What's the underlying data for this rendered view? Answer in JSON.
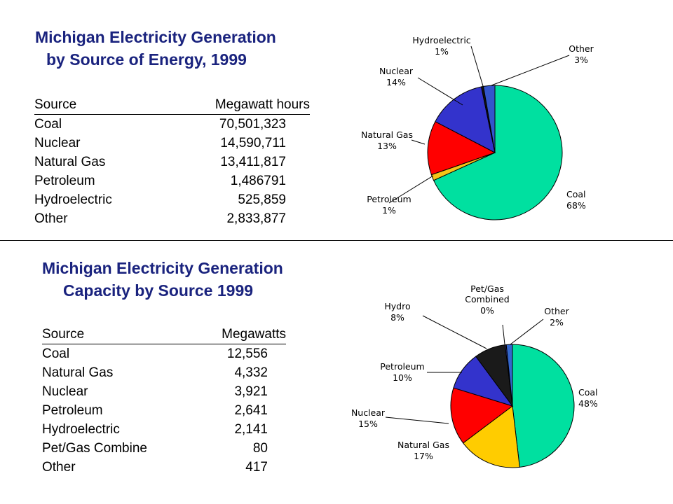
{
  "generation": {
    "title_line1": "Michigan Electricity Generation",
    "title_line2": "by Source of Energy, 1999",
    "col_source": "Source",
    "col_value": "Megawatt hours",
    "rows": [
      {
        "source": "Coal",
        "value": "70,501,323"
      },
      {
        "source": "Nuclear",
        "value": "14,590,711"
      },
      {
        "source": "Natural Gas",
        "value": "13,411,817"
      },
      {
        "source": "Petroleum",
        "value": "1,486791"
      },
      {
        "source": "Hydroelectric",
        "value": "525,859"
      },
      {
        "source": "Other",
        "value": "2,833,877"
      }
    ]
  },
  "capacity": {
    "title_line1": "Michigan Electricity Generation",
    "title_line2": "Capacity by Source 1999",
    "col_source": "Source",
    "col_value": "Megawatts",
    "rows": [
      {
        "source": "Coal",
        "value": "12,556"
      },
      {
        "source": "Natural Gas",
        "value": "4,332"
      },
      {
        "source": "Nuclear",
        "value": "3,921"
      },
      {
        "source": "Petroleum",
        "value": "2,641"
      },
      {
        "source": "Hydroelectric",
        "value": "2,141"
      },
      {
        "source": "Pet/Gas Combine",
        "value": "80"
      },
      {
        "source": "Other",
        "value": "417"
      }
    ]
  },
  "chart_data": [
    {
      "type": "pie",
      "slices": [
        {
          "label": "Coal",
          "pct_label": "68%",
          "value": 70501323,
          "color": "#00e0a0"
        },
        {
          "label": "Petroleum",
          "pct_label": "1%",
          "value": 1486791,
          "color": "#f5c518"
        },
        {
          "label": "Natural Gas",
          "pct_label": "13%",
          "value": 13411817,
          "color": "#ff0000"
        },
        {
          "label": "Nuclear",
          "pct_label": "14%",
          "value": 14590711,
          "color": "#3333cc"
        },
        {
          "label": "Hydroelectric",
          "pct_label": "1%",
          "value": 525859,
          "color": "#111111"
        },
        {
          "label": "Other",
          "pct_label": "3%",
          "value": 2833877,
          "color": "#3355cc"
        }
      ]
    },
    {
      "type": "pie",
      "slices": [
        {
          "label": "Coal",
          "pct_label": "48%",
          "value": 12556,
          "color": "#00e0a0"
        },
        {
          "label": "Natural Gas",
          "pct_label": "17%",
          "value": 4332,
          "color": "#ffcc00"
        },
        {
          "label": "Nuclear",
          "pct_label": "15%",
          "value": 3921,
          "color": "#ff0000"
        },
        {
          "label": "Petroleum",
          "pct_label": "10%",
          "value": 2641,
          "color": "#3333cc"
        },
        {
          "label": "Hydro",
          "pct_label": "8%",
          "value": 2141,
          "color": "#1a1a1a"
        },
        {
          "label": "Pet/Gas Combined",
          "pct_label": "0%",
          "value": 80,
          "color": "#333399"
        },
        {
          "label": "Other",
          "pct_label": "2%",
          "value": 417,
          "color": "#3366cc"
        }
      ]
    }
  ]
}
